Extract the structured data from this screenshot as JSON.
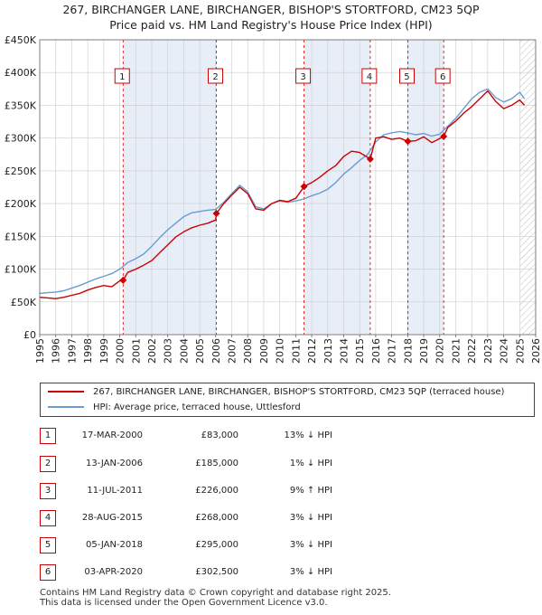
{
  "title_line1": "267, BIRCHANGER LANE, BIRCHANGER, BISHOP'S STORTFORD, CM23 5QP",
  "title_line2": "Price paid vs. HM Land Registry's House Price Index (HPI)",
  "colors": {
    "property": "#cc0000",
    "hpi": "#6a9bd1",
    "shade": "#e8eef8",
    "grid": "#cccccc"
  },
  "legend": {
    "property": "267, BIRCHANGER LANE, BIRCHANGER, BISHOP'S STORTFORD, CM23 5QP (terraced house)",
    "hpi": "HPI: Average price, terraced house, Uttlesford"
  },
  "sales": [
    {
      "n": "1",
      "date": "17-MAR-2000",
      "price": "£83,000",
      "hpi": "13% ↓ HPI"
    },
    {
      "n": "2",
      "date": "13-JAN-2006",
      "price": "£185,000",
      "hpi": "1% ↓ HPI"
    },
    {
      "n": "3",
      "date": "11-JUL-2011",
      "price": "£226,000",
      "hpi": "9% ↑ HPI"
    },
    {
      "n": "4",
      "date": "28-AUG-2015",
      "price": "£268,000",
      "hpi": "3% ↓ HPI"
    },
    {
      "n": "5",
      "date": "05-JAN-2018",
      "price": "£295,000",
      "hpi": "3% ↓ HPI"
    },
    {
      "n": "6",
      "date": "03-APR-2020",
      "price": "£302,500",
      "hpi": "3% ↓ HPI"
    }
  ],
  "footer": {
    "line1": "Contains HM Land Registry data © Crown copyright and database right 2025.",
    "line2": "This data is licensed under the Open Government Licence v3.0."
  },
  "chart_data": {
    "type": "line",
    "title": "267, BIRCHANGER LANE, BIRCHANGER, BISHOP'S STORTFORD, CM23 5QP — Price paid vs. HM Land Registry's House Price Index (HPI)",
    "xlabel": "",
    "ylabel": "",
    "xlim": [
      1995,
      2026
    ],
    "ylim": [
      0,
      450000
    ],
    "y_ticks": [
      0,
      50000,
      100000,
      150000,
      200000,
      250000,
      300000,
      350000,
      400000,
      450000
    ],
    "y_tick_labels": [
      "£0",
      "£50K",
      "£100K",
      "£150K",
      "£200K",
      "£250K",
      "£300K",
      "£350K",
      "£400K",
      "£450K"
    ],
    "x_ticks": [
      1995,
      1996,
      1997,
      1998,
      1999,
      2000,
      2001,
      2002,
      2003,
      2004,
      2005,
      2006,
      2007,
      2008,
      2009,
      2010,
      2011,
      2012,
      2013,
      2014,
      2015,
      2016,
      2017,
      2018,
      2019,
      2020,
      2021,
      2022,
      2023,
      2024,
      2025,
      2026
    ],
    "shaded_periods": [
      [
        2000.21,
        2006.04
      ],
      [
        2011.52,
        2015.66
      ],
      [
        2018.01,
        2020.25
      ]
    ],
    "future_hatch_from": 2025.0,
    "sale_markers": [
      {
        "label": "1",
        "x": 2000.21,
        "y": 83000
      },
      {
        "label": "2",
        "x": 2006.04,
        "y": 185000
      },
      {
        "label": "3",
        "x": 2011.52,
        "y": 226000
      },
      {
        "label": "4",
        "x": 2015.66,
        "y": 268000
      },
      {
        "label": "5",
        "x": 2018.01,
        "y": 295000
      },
      {
        "label": "6",
        "x": 2020.25,
        "y": 302500
      }
    ],
    "series": [
      {
        "name": "267, BIRCHANGER LANE, BIRCHANGER, BISHOP'S STORTFORD, CM23 5QP (terraced house)",
        "color": "#cc0000",
        "x": [
          1995.0,
          1995.5,
          1996.0,
          1996.5,
          1997.0,
          1997.5,
          1998.0,
          1998.5,
          1999.0,
          1999.5,
          2000.0,
          2000.21,
          2000.5,
          2001.0,
          2001.5,
          2002.0,
          2002.5,
          2003.0,
          2003.5,
          2004.0,
          2004.5,
          2005.0,
          2005.5,
          2006.0,
          2006.04,
          2006.5,
          2007.0,
          2007.5,
          2008.0,
          2008.5,
          2009.0,
          2009.5,
          2010.0,
          2010.5,
          2011.0,
          2011.52,
          2012.0,
          2012.5,
          2013.0,
          2013.5,
          2014.0,
          2014.5,
          2015.0,
          2015.66,
          2016.0,
          2016.5,
          2017.0,
          2017.5,
          2018.01,
          2018.5,
          2019.0,
          2019.5,
          2020.25,
          2020.5,
          2021.0,
          2021.5,
          2022.0,
          2022.5,
          2023.0,
          2023.5,
          2024.0,
          2024.5,
          2025.0,
          2025.3
        ],
        "y": [
          57000,
          56000,
          55000,
          57000,
          60000,
          63000,
          68000,
          72000,
          75000,
          73000,
          82000,
          83000,
          95000,
          100000,
          106000,
          113000,
          125000,
          137000,
          149000,
          157000,
          163000,
          167000,
          170000,
          175000,
          185000,
          200000,
          213000,
          225000,
          215000,
          192000,
          190000,
          200000,
          205000,
          203000,
          208000,
          226000,
          232000,
          240000,
          250000,
          258000,
          272000,
          280000,
          278000,
          268000,
          300000,
          302000,
          298000,
          300000,
          295000,
          296000,
          302000,
          293000,
          302500,
          316000,
          326000,
          338000,
          348000,
          360000,
          372000,
          356000,
          345000,
          350000,
          358000,
          350000
        ]
      },
      {
        "name": "HPI: Average price, terraced house, Uttlesford",
        "color": "#6a9bd1",
        "x": [
          1995.0,
          1995.5,
          1996.0,
          1996.5,
          1997.0,
          1997.5,
          1998.0,
          1998.5,
          1999.0,
          1999.5,
          2000.0,
          2000.5,
          2001.0,
          2001.5,
          2002.0,
          2002.5,
          2003.0,
          2003.5,
          2004.0,
          2004.5,
          2005.0,
          2005.5,
          2006.0,
          2006.5,
          2007.0,
          2007.5,
          2008.0,
          2008.5,
          2009.0,
          2009.5,
          2010.0,
          2010.5,
          2011.0,
          2011.5,
          2012.0,
          2012.5,
          2013.0,
          2013.5,
          2014.0,
          2014.5,
          2015.0,
          2015.5,
          2016.0,
          2016.5,
          2017.0,
          2017.5,
          2018.0,
          2018.5,
          2019.0,
          2019.5,
          2020.0,
          2020.5,
          2021.0,
          2021.5,
          2022.0,
          2022.5,
          2023.0,
          2023.5,
          2024.0,
          2024.5,
          2025.0,
          2025.3
        ],
        "y": [
          63000,
          64000,
          65000,
          67000,
          71000,
          75000,
          80000,
          85000,
          89000,
          93000,
          100000,
          110000,
          116000,
          123000,
          135000,
          148000,
          160000,
          170000,
          180000,
          186000,
          188000,
          190000,
          191000,
          202000,
          215000,
          228000,
          218000,
          195000,
          192000,
          200000,
          204000,
          202000,
          204000,
          207000,
          212000,
          216000,
          222000,
          232000,
          245000,
          255000,
          266000,
          275000,
          294000,
          305000,
          308000,
          310000,
          308000,
          305000,
          307000,
          303000,
          306000,
          318000,
          330000,
          345000,
          360000,
          370000,
          375000,
          362000,
          355000,
          360000,
          370000,
          360000
        ]
      }
    ]
  }
}
